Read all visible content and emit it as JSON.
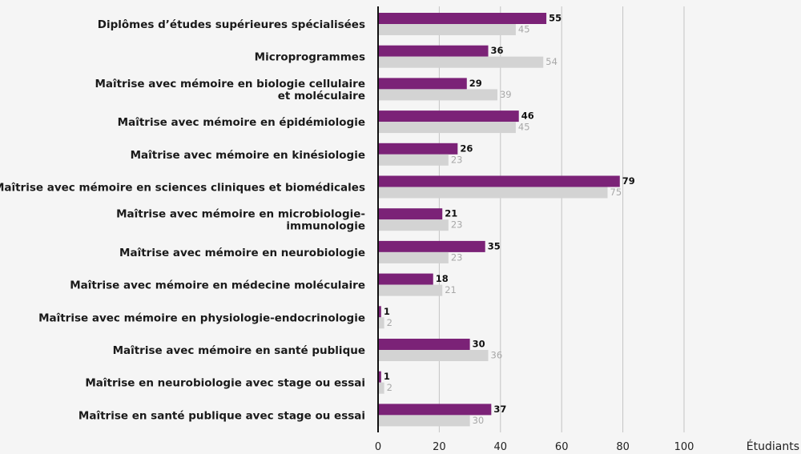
{
  "chart_data": {
    "type": "bar",
    "orientation": "horizontal",
    "xlabel": "Étudiants",
    "xlim": [
      0,
      100
    ],
    "xticks": [
      0,
      20,
      40,
      60,
      80,
      100
    ],
    "grid": true,
    "categories": [
      "Diplômes d’études supérieures spécialisées",
      "Microprogrammes",
      "Maîtrise avec mémoire en biologie cellulaire\net moléculaire",
      "Maîtrise avec mémoire en épidémiologie",
      "Maîtrise avec mémoire en kinésiologie",
      "Maîtrise avec mémoire en sciences cliniques et biomédicales",
      "Maîtrise avec mémoire en microbiologie-\nimmunologie",
      "Maîtrise avec mémoire en neurobiologie",
      "Maîtrise avec mémoire en médecine moléculaire",
      "Maîtrise avec mémoire en physiologie-endocrinologie",
      "Maîtrise avec mémoire en santé publique",
      "Maîtrise en neurobiologie avec stage ou essai",
      "Maîtrise en santé publique avec stage ou essai"
    ],
    "series": [
      {
        "color": "#7b2277",
        "values": [
          55,
          36,
          29,
          46,
          26,
          79,
          21,
          35,
          18,
          1,
          30,
          1,
          37
        ]
      },
      {
        "color": "#d3d3d3",
        "values": [
          45,
          54,
          39,
          45,
          23,
          75,
          23,
          23,
          21,
          2,
          36,
          2,
          30
        ]
      }
    ]
  }
}
